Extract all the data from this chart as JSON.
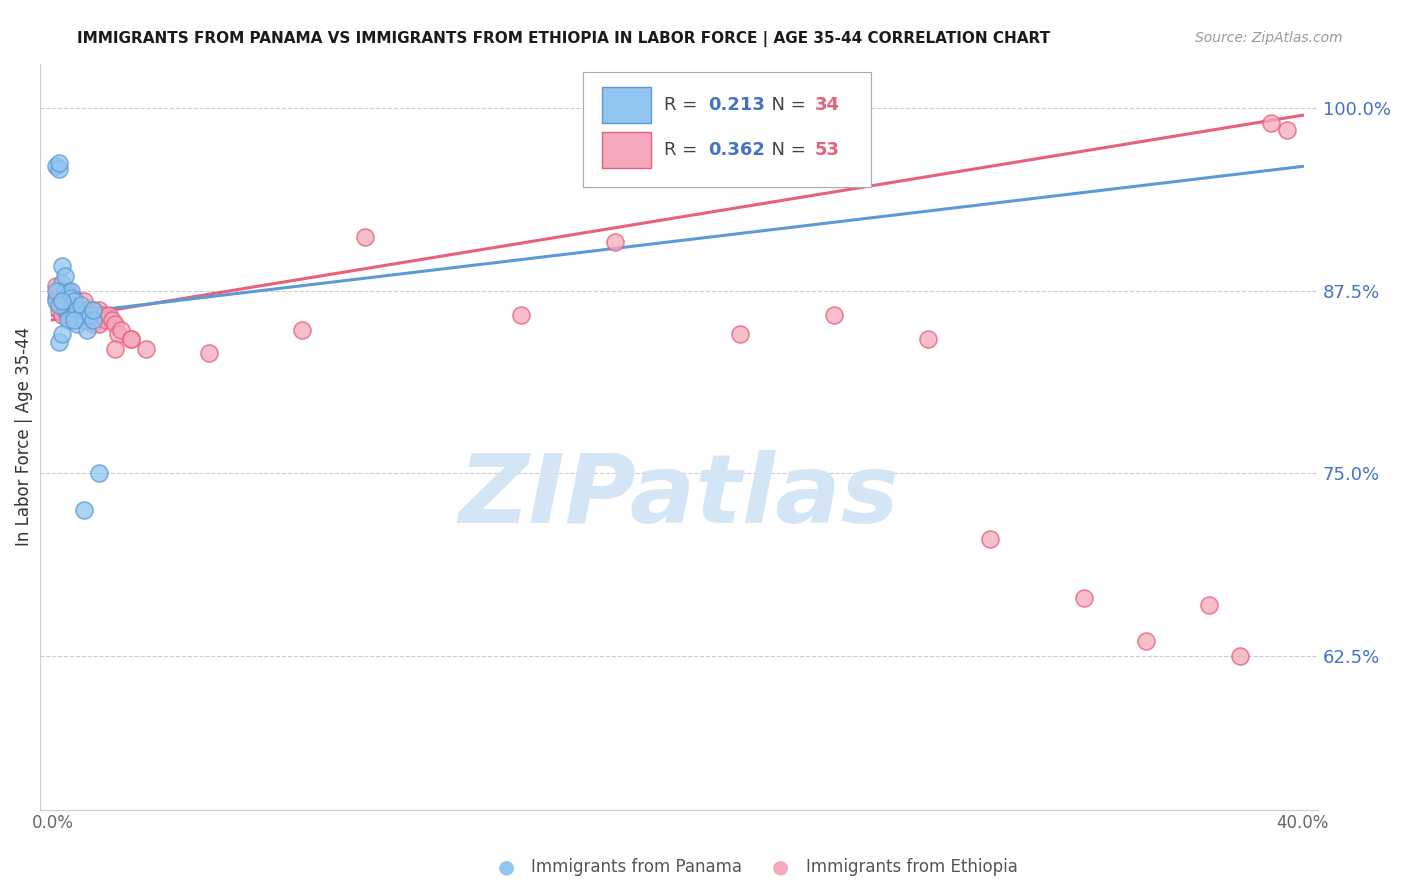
{
  "title": "IMMIGRANTS FROM PANAMA VS IMMIGRANTS FROM ETHIOPIA IN LABOR FORCE | AGE 35-44 CORRELATION CHART",
  "source": "Source: ZipAtlas.com",
  "ylabel": "In Labor Force | Age 35-44",
  "xlim_min": -0.004,
  "xlim_max": 0.405,
  "ylim_min": 0.52,
  "ylim_max": 1.03,
  "xtick_vals": [
    0.0,
    0.05,
    0.1,
    0.15,
    0.2,
    0.25,
    0.3,
    0.35,
    0.4
  ],
  "xticklabels": [
    "0.0%",
    "",
    "",
    "",
    "",
    "",
    "",
    "",
    "40.0%"
  ],
  "ytick_positions": [
    0.625,
    0.75,
    0.875,
    1.0
  ],
  "ytick_labels": [
    "62.5%",
    "75.0%",
    "87.5%",
    "100.0%"
  ],
  "legend_r_panama": "0.213",
  "legend_n_panama": "34",
  "legend_r_ethiopia": "0.362",
  "legend_n_ethiopia": "53",
  "panama_color": "#92C5F0",
  "ethiopia_color": "#F5A8BC",
  "panama_edge_color": "#5B9BD5",
  "ethiopia_edge_color": "#E8607A",
  "panama_line_color": "#5B9BD5",
  "ethiopia_line_color": "#E8607A",
  "watermark_text": "ZIPatlas",
  "watermark_color": "#D0E4F5",
  "grid_color": "#CCCCCC",
  "title_color": "#1A1A1A",
  "source_color": "#999999",
  "ylabel_color": "#333333",
  "ytick_color": "#4472C4",
  "xtick_color": "#666666",
  "background": "#FFFFFF",
  "legend_r_color": "#4472C4",
  "legend_n_color": "#E8607A",
  "panama_x": [
    0.001,
    0.002,
    0.002,
    0.003,
    0.003,
    0.004,
    0.004,
    0.004,
    0.005,
    0.005,
    0.006,
    0.006,
    0.006,
    0.007,
    0.007,
    0.008,
    0.008,
    0.009,
    0.009,
    0.01,
    0.011,
    0.012,
    0.013,
    0.013,
    0.001,
    0.001,
    0.002,
    0.003,
    0.005,
    0.007,
    0.002,
    0.003,
    0.01,
    0.015
  ],
  "panama_y": [
    0.96,
    0.958,
    0.962,
    0.88,
    0.892,
    0.875,
    0.885,
    0.87,
    0.872,
    0.862,
    0.875,
    0.862,
    0.87,
    0.858,
    0.868,
    0.852,
    0.862,
    0.858,
    0.865,
    0.855,
    0.848,
    0.858,
    0.855,
    0.862,
    0.868,
    0.875,
    0.865,
    0.868,
    0.855,
    0.855,
    0.84,
    0.845,
    0.725,
    0.75
  ],
  "ethiopia_x": [
    0.001,
    0.001,
    0.002,
    0.002,
    0.003,
    0.003,
    0.004,
    0.004,
    0.005,
    0.005,
    0.005,
    0.006,
    0.007,
    0.007,
    0.008,
    0.008,
    0.009,
    0.01,
    0.01,
    0.011,
    0.011,
    0.012,
    0.013,
    0.013,
    0.014,
    0.015,
    0.015,
    0.016,
    0.017,
    0.018,
    0.019,
    0.02,
    0.021,
    0.022,
    0.025,
    0.02,
    0.025,
    0.03,
    0.05,
    0.08,
    0.1,
    0.15,
    0.18,
    0.22,
    0.25,
    0.28,
    0.3,
    0.33,
    0.35,
    0.37,
    0.38,
    0.39,
    0.395
  ],
  "ethiopia_y": [
    0.87,
    0.878,
    0.862,
    0.875,
    0.858,
    0.87,
    0.862,
    0.872,
    0.858,
    0.868,
    0.875,
    0.865,
    0.862,
    0.87,
    0.858,
    0.865,
    0.862,
    0.858,
    0.868,
    0.855,
    0.862,
    0.858,
    0.852,
    0.862,
    0.858,
    0.852,
    0.862,
    0.858,
    0.855,
    0.858,
    0.855,
    0.852,
    0.845,
    0.848,
    0.842,
    0.835,
    0.842,
    0.835,
    0.832,
    0.848,
    0.912,
    0.858,
    0.908,
    0.845,
    0.858,
    0.842,
    0.705,
    0.665,
    0.635,
    0.66,
    0.625,
    0.99,
    0.985
  ],
  "panama_trend_x0": 0.0,
  "panama_trend_y0": 0.858,
  "panama_trend_x1": 0.4,
  "panama_trend_y1": 0.96,
  "ethiopia_trend_x0": 0.0,
  "ethiopia_trend_y0": 0.855,
  "ethiopia_trend_x1": 0.4,
  "ethiopia_trend_y1": 0.995,
  "bottom_legend_panama": "Immigrants from Panama",
  "bottom_legend_ethiopia": "Immigrants from Ethiopia"
}
